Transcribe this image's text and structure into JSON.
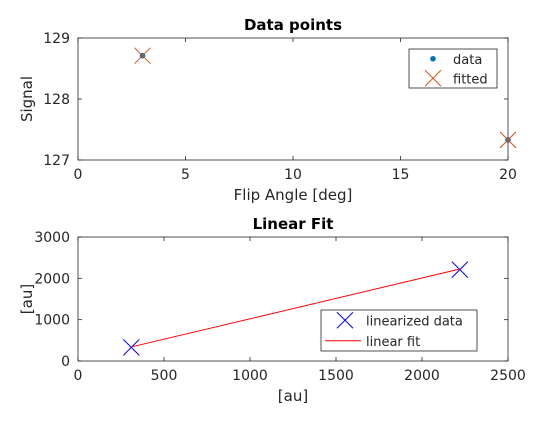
{
  "chart_data": [
    {
      "type": "scatter",
      "title": "Data points",
      "xlabel": "Flip Angle [deg]",
      "ylabel": "Signal",
      "xlim": [
        0,
        20
      ],
      "ylim": [
        127,
        129
      ],
      "xticks": [
        0,
        5,
        10,
        15,
        20
      ],
      "yticks": [
        127,
        128,
        129
      ],
      "grid": false,
      "legend_position": "top-right",
      "series": [
        {
          "name": "data",
          "marker": "dot",
          "color": "#0072BD",
          "x": [
            3,
            20
          ],
          "y": [
            128.71,
            127.33
          ]
        },
        {
          "name": "fitted",
          "marker": "x",
          "color": "#D95319",
          "x": [
            3,
            20
          ],
          "y": [
            128.71,
            127.33
          ]
        }
      ]
    },
    {
      "type": "line",
      "title": "Linear Fit",
      "xlabel": "[au]",
      "ylabel": "[au]",
      "xlim": [
        0,
        2500
      ],
      "ylim": [
        0,
        3000
      ],
      "xticks": [
        0,
        500,
        1000,
        1500,
        2000,
        2500
      ],
      "yticks": [
        0,
        1000,
        2000,
        3000
      ],
      "grid": false,
      "legend_position": "bottom-right",
      "series": [
        {
          "name": "linearized data",
          "marker": "x",
          "color": "#0000FF",
          "x": [
            310,
            2220
          ],
          "y": [
            330,
            2210
          ]
        },
        {
          "name": "linear fit",
          "marker": "line",
          "color": "#FF0000",
          "x": [
            310,
            2220
          ],
          "y": [
            340,
            2225
          ]
        }
      ]
    }
  ]
}
